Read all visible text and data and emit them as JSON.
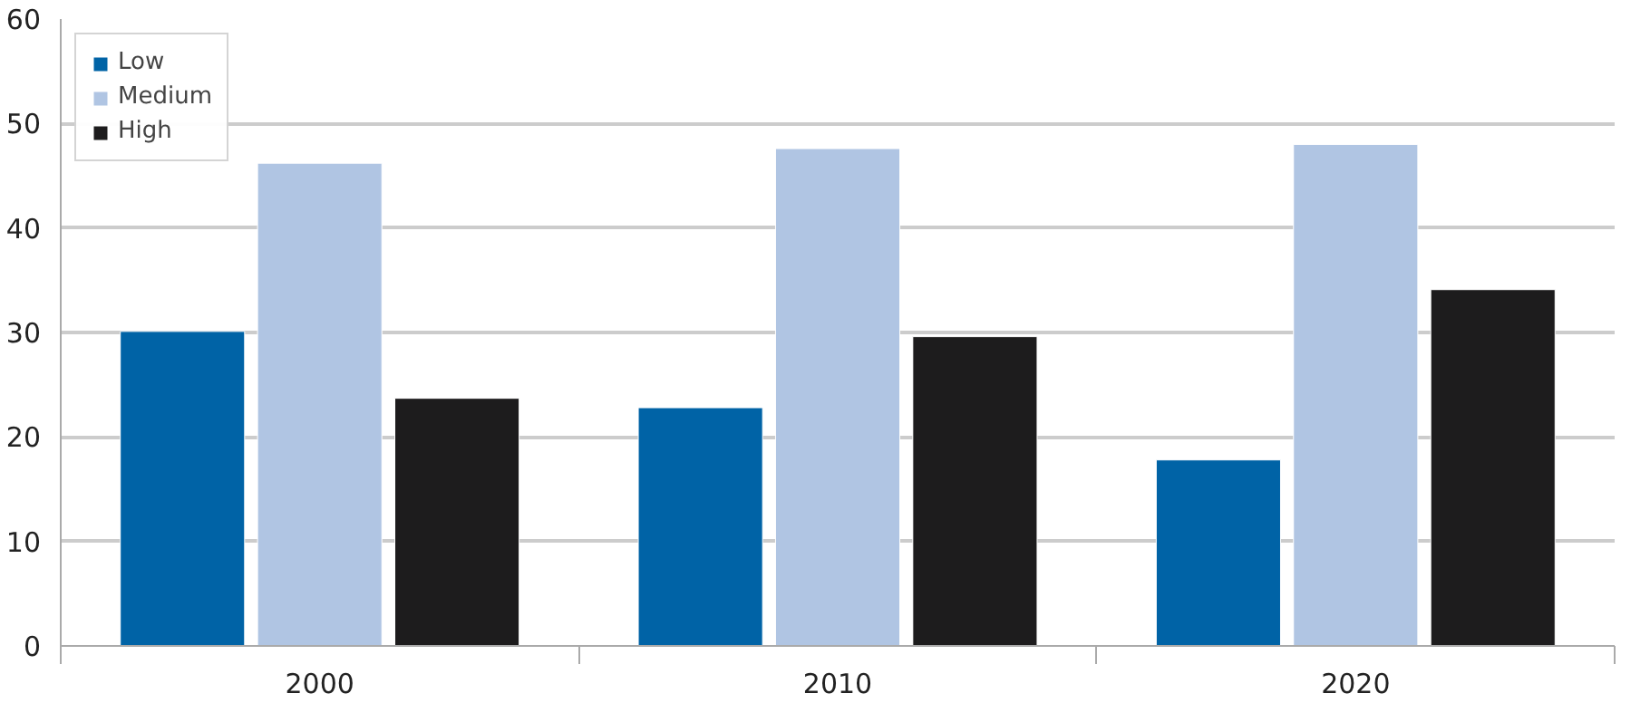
{
  "chart_data": {
    "type": "bar",
    "categories": [
      "2000",
      "2010",
      "2020"
    ],
    "series": [
      {
        "name": "Low",
        "color": "#0063a6",
        "values": [
          30.1,
          22.8,
          17.8
        ]
      },
      {
        "name": "Medium",
        "color": "#b0c5e3",
        "values": [
          46.2,
          47.6,
          48.0
        ]
      },
      {
        "name": "High",
        "color": "#1d1c1d",
        "values": [
          23.7,
          29.6,
          34.1
        ]
      }
    ],
    "ylim": [
      0,
      60
    ],
    "yticks": [
      0,
      10,
      20,
      30,
      40,
      50,
      60
    ],
    "grid": "y",
    "legend": "top left"
  }
}
